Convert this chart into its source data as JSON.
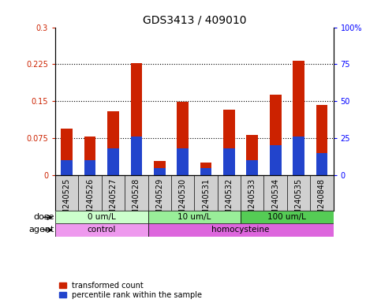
{
  "title": "GDS3413 / 409010",
  "samples": [
    "GSM240525",
    "GSM240526",
    "GSM240527",
    "GSM240528",
    "GSM240529",
    "GSM240530",
    "GSM240531",
    "GSM240532",
    "GSM240533",
    "GSM240534",
    "GSM240535",
    "GSM240848"
  ],
  "transformed_count": [
    0.095,
    0.078,
    0.13,
    0.228,
    0.028,
    0.148,
    0.025,
    0.132,
    0.082,
    0.163,
    0.232,
    0.143
  ],
  "percentile_rank_pct": [
    10.0,
    10.0,
    18.0,
    26.0,
    5.0,
    18.0,
    5.0,
    18.0,
    10.0,
    20.0,
    26.0,
    15.0
  ],
  "ylim_left": [
    0,
    0.3
  ],
  "ylim_right": [
    0,
    100
  ],
  "yticks_left": [
    0,
    0.075,
    0.15,
    0.225,
    0.3
  ],
  "ytick_labels_left": [
    "0",
    "0.075",
    "0.15",
    "0.225",
    "0.3"
  ],
  "yticks_right": [
    0,
    25,
    50,
    75,
    100
  ],
  "ytick_labels_right": [
    "0",
    "25",
    "50",
    "75",
    "100%"
  ],
  "bar_color_red": "#cc2200",
  "bar_color_blue": "#2244cc",
  "dose_groups": [
    {
      "label": "0 um/L",
      "start": 0,
      "end": 4,
      "color": "#ccffcc"
    },
    {
      "label": "10 um/L",
      "start": 4,
      "end": 8,
      "color": "#99ee99"
    },
    {
      "label": "100 um/L",
      "start": 8,
      "end": 12,
      "color": "#55cc55"
    }
  ],
  "agent_groups": [
    {
      "label": "control",
      "start": 0,
      "end": 4,
      "color": "#ee99ee"
    },
    {
      "label": "homocysteine",
      "start": 4,
      "end": 12,
      "color": "#dd66dd"
    }
  ],
  "dose_label": "dose",
  "agent_label": "agent",
  "legend_red": "transformed count",
  "legend_blue": "percentile rank within the sample",
  "title_fontsize": 10,
  "tick_fontsize": 7,
  "bar_width": 0.5,
  "xtick_bg": "#d0d0d0",
  "spine_color": "#000000"
}
